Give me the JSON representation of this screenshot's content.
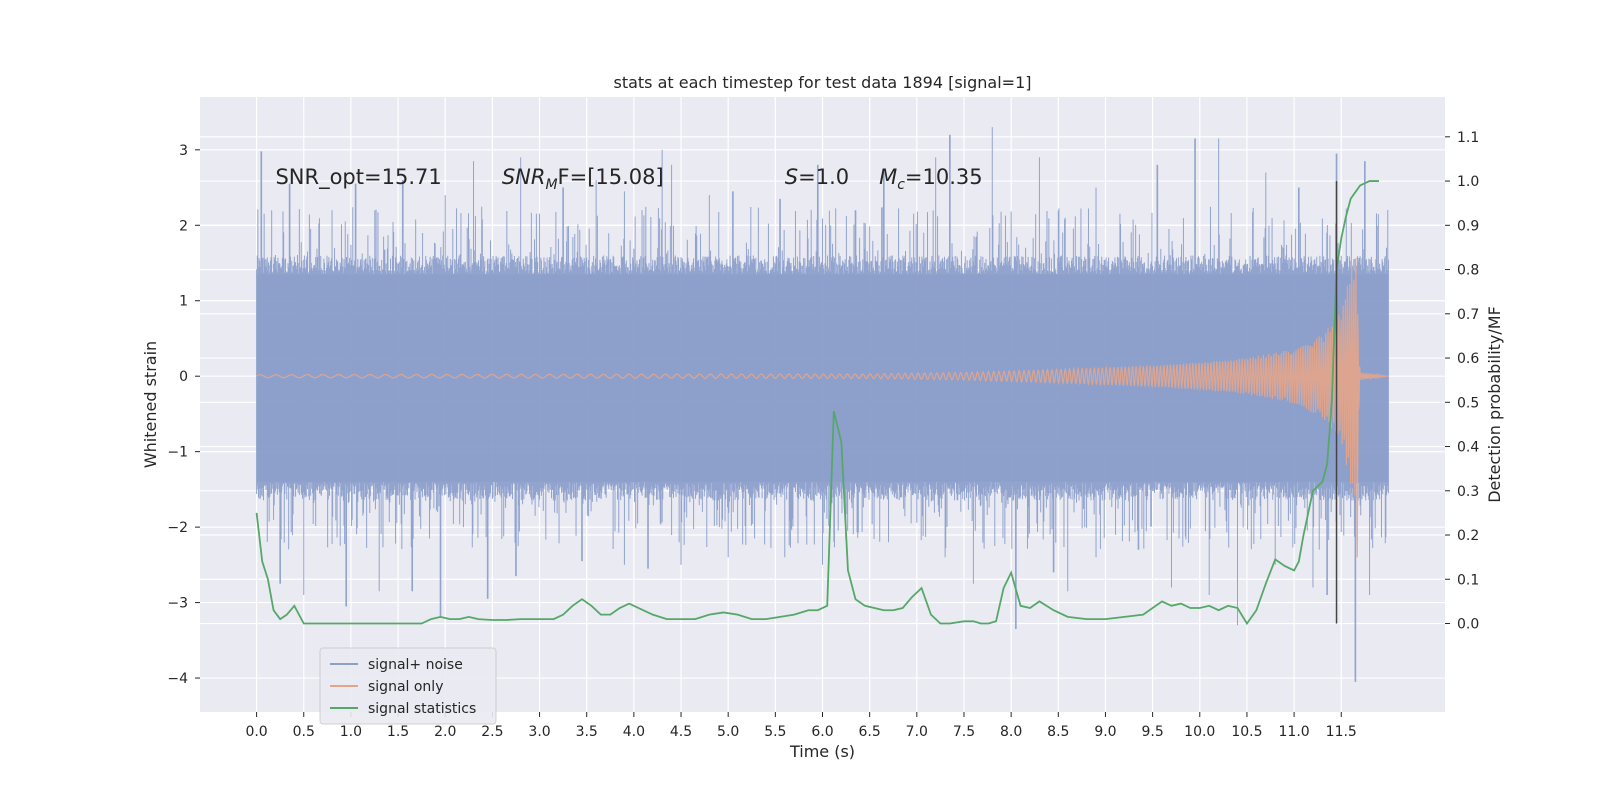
{
  "chart_data": {
    "type": "line",
    "title": "stats at each timestep for test data 1894 [signal=1]",
    "xlabel": "Time (s)",
    "ylabel": "Whitened strain",
    "y2label": "Detection probability/MF",
    "xlim": [
      -0.6,
      12.6
    ],
    "ylim": [
      -4.45,
      3.7
    ],
    "y2lim": [
      -0.2,
      1.19
    ],
    "xticks": [
      0.0,
      0.5,
      1.0,
      1.5,
      2.0,
      2.5,
      3.0,
      3.5,
      4.0,
      4.5,
      5.0,
      5.5,
      6.0,
      6.5,
      7.0,
      7.5,
      8.0,
      8.5,
      9.0,
      9.5,
      10.0,
      10.5,
      11.0,
      11.5
    ],
    "xtick_labels": [
      "0.0",
      "0.5",
      "1.0",
      "1.5",
      "2.0",
      "2.5",
      "3.0",
      "3.5",
      "4.0",
      "4.5",
      "5.0",
      "5.5",
      "6.0",
      "6.5",
      "7.0",
      "7.5",
      "8.0",
      "8.5",
      "9.0",
      "9.5",
      "10.0",
      "10.5",
      "11.0",
      "11.5"
    ],
    "yticks": [
      -4,
      -3,
      -2,
      -1,
      0,
      1,
      2,
      3
    ],
    "ytick_labels": [
      "−4",
      "−3",
      "−2",
      "−1",
      "0",
      "1",
      "2",
      "3"
    ],
    "y2ticks": [
      0.0,
      0.1,
      0.2,
      0.3,
      0.4,
      0.5,
      0.6,
      0.7,
      0.8,
      0.9,
      1.0,
      1.1
    ],
    "y2tick_labels": [
      "0.0",
      "0.1",
      "0.2",
      "0.3",
      "0.4",
      "0.5",
      "0.6",
      "0.7",
      "0.8",
      "0.9",
      "1.0",
      "1.1"
    ],
    "grid": true,
    "legend_position": "lower-left",
    "legend": [
      {
        "label": "signal+ noise",
        "color": "#8da0cb"
      },
      {
        "label": "signal only",
        "color": "#e5a589"
      },
      {
        "label": "signal statistics",
        "color": "#55a868"
      }
    ],
    "annotations": [
      {
        "prefix": "SNR_opt=15.71",
        "sub": "",
        "suffix": "",
        "x": 0.2,
        "y": 2.65
      },
      {
        "prefix": "SNR",
        "sub": "M",
        "suffix": "F=[15.08]",
        "italic_prefix": true,
        "x": 2.6,
        "y": 2.65
      },
      {
        "prefix": "S",
        "sub": "",
        "suffix": "=1.0",
        "italic_prefix": true,
        "x": 5.6,
        "y": 2.65
      },
      {
        "prefix": "M",
        "sub": "c",
        "suffix": "=10.35",
        "italic_prefix": true,
        "x": 6.6,
        "y": 2.65
      }
    ],
    "marker_line": {
      "x": 11.45,
      "y2_from": 0.0,
      "y2_to": 1.0,
      "color": "#444444"
    },
    "series": [
      {
        "name": "signal+ noise",
        "color": "#8da0cb",
        "style": "dense-noise",
        "x_range": [
          0.0,
          12.0
        ],
        "y_core": [
          -1.4,
          1.35
        ],
        "y_peaks": [
          [
            0.05,
            2.98
          ],
          [
            0.35,
            2.55
          ],
          [
            0.8,
            2.2
          ],
          [
            1.05,
            2.55
          ],
          [
            1.55,
            2.6
          ],
          [
            2.0,
            2.4
          ],
          [
            2.3,
            2.85
          ],
          [
            2.8,
            2.9
          ],
          [
            3.25,
            2.5
          ],
          [
            3.6,
            2.6
          ],
          [
            3.9,
            2.45
          ],
          [
            4.3,
            3.0
          ],
          [
            4.4,
            2.8
          ],
          [
            4.8,
            2.4
          ],
          [
            5.05,
            2.45
          ],
          [
            5.55,
            2.35
          ],
          [
            5.95,
            2.8
          ],
          [
            6.35,
            2.2
          ],
          [
            6.65,
            2.7
          ],
          [
            7.2,
            2.9
          ],
          [
            7.35,
            3.2
          ],
          [
            7.8,
            3.3
          ],
          [
            8.3,
            2.9
          ],
          [
            8.9,
            2.5
          ],
          [
            9.55,
            2.8
          ],
          [
            9.95,
            3.15
          ],
          [
            10.2,
            3.15
          ],
          [
            10.7,
            2.7
          ],
          [
            11.05,
            2.5
          ],
          [
            11.45,
            2.95
          ],
          [
            11.75,
            2.85
          ]
        ],
        "y_troughs": [
          [
            0.25,
            -2.75
          ],
          [
            0.5,
            -2.9
          ],
          [
            0.95,
            -3.05
          ],
          [
            1.3,
            -2.85
          ],
          [
            1.65,
            -2.85
          ],
          [
            1.95,
            -3.2
          ],
          [
            2.45,
            -2.95
          ],
          [
            2.75,
            -2.65
          ],
          [
            3.45,
            -2.45
          ],
          [
            3.9,
            -2.5
          ],
          [
            4.15,
            -2.55
          ],
          [
            4.5,
            -2.5
          ],
          [
            5.0,
            -2.4
          ],
          [
            5.6,
            -2.4
          ],
          [
            6.0,
            -2.5
          ],
          [
            6.7,
            -2.2
          ],
          [
            7.3,
            -2.4
          ],
          [
            7.6,
            -2.75
          ],
          [
            8.05,
            -3.35
          ],
          [
            8.45,
            -2.6
          ],
          [
            8.6,
            -2.85
          ],
          [
            8.9,
            -2.4
          ],
          [
            9.35,
            -2.3
          ],
          [
            9.7,
            -2.8
          ],
          [
            10.1,
            -2.9
          ],
          [
            10.4,
            -3.3
          ],
          [
            10.8,
            -2.5
          ],
          [
            11.2,
            -2.8
          ],
          [
            11.35,
            -2.9
          ],
          [
            11.65,
            -4.05
          ],
          [
            11.8,
            -2.9
          ]
        ]
      },
      {
        "name": "signal only",
        "color": "#e5a589",
        "style": "chirp",
        "x_range": [
          0.0,
          12.0
        ],
        "envelope": [
          [
            0.0,
            0.02
          ],
          [
            6.5,
            0.03
          ],
          [
            7.5,
            0.05
          ],
          [
            8.5,
            0.09
          ],
          [
            9.5,
            0.14
          ],
          [
            10.0,
            0.18
          ],
          [
            10.5,
            0.24
          ],
          [
            11.0,
            0.36
          ],
          [
            11.3,
            0.55
          ],
          [
            11.5,
            0.85
          ],
          [
            11.65,
            1.75
          ],
          [
            11.7,
            0.05
          ],
          [
            12.0,
            0.0
          ]
        ],
        "trough_at_merger": -2.4
      },
      {
        "name": "signal statistics",
        "color": "#55a868",
        "axis": "y2",
        "x": [
          0.0,
          0.06,
          0.12,
          0.18,
          0.25,
          0.32,
          0.4,
          0.5,
          0.62,
          0.75,
          0.9,
          1.05,
          1.2,
          1.35,
          1.5,
          1.62,
          1.75,
          1.85,
          1.95,
          2.05,
          2.15,
          2.25,
          2.35,
          2.5,
          2.65,
          2.8,
          2.95,
          3.05,
          3.15,
          3.25,
          3.35,
          3.45,
          3.55,
          3.65,
          3.75,
          3.85,
          3.95,
          4.05,
          4.2,
          4.35,
          4.5,
          4.65,
          4.8,
          4.95,
          5.1,
          5.25,
          5.4,
          5.55,
          5.7,
          5.85,
          5.95,
          6.05,
          6.12,
          6.2,
          6.27,
          6.35,
          6.45,
          6.55,
          6.65,
          6.75,
          6.85,
          6.95,
          7.05,
          7.15,
          7.25,
          7.35,
          7.5,
          7.6,
          7.68,
          7.76,
          7.84,
          7.92,
          8.0,
          8.1,
          8.2,
          8.3,
          8.45,
          8.6,
          8.8,
          9.0,
          9.2,
          9.4,
          9.6,
          9.7,
          9.8,
          9.9,
          10.0,
          10.1,
          10.2,
          10.3,
          10.4,
          10.5,
          10.6,
          10.7,
          10.8,
          10.9,
          11.0,
          11.05,
          11.1,
          11.15,
          11.2,
          11.25,
          11.3,
          11.35,
          11.4,
          11.45,
          11.5,
          11.55,
          11.6,
          11.7,
          11.8,
          11.9
        ],
        "y": [
          0.25,
          0.14,
          0.1,
          0.03,
          0.01,
          0.02,
          0.04,
          0.0,
          0.0,
          0.0,
          0.0,
          0.0,
          0.0,
          0.0,
          0.0,
          0.0,
          0.0,
          0.01,
          0.015,
          0.01,
          0.01,
          0.015,
          0.01,
          0.008,
          0.008,
          0.01,
          0.01,
          0.01,
          0.01,
          0.02,
          0.04,
          0.055,
          0.04,
          0.02,
          0.02,
          0.035,
          0.045,
          0.035,
          0.02,
          0.01,
          0.01,
          0.01,
          0.02,
          0.025,
          0.02,
          0.01,
          0.01,
          0.015,
          0.02,
          0.03,
          0.03,
          0.04,
          0.48,
          0.41,
          0.12,
          0.055,
          0.04,
          0.035,
          0.03,
          0.03,
          0.035,
          0.06,
          0.08,
          0.02,
          0.0,
          0.0,
          0.005,
          0.005,
          0.0,
          0.0,
          0.005,
          0.08,
          0.115,
          0.04,
          0.035,
          0.05,
          0.03,
          0.015,
          0.01,
          0.01,
          0.015,
          0.02,
          0.05,
          0.04,
          0.045,
          0.035,
          0.035,
          0.04,
          0.03,
          0.04,
          0.035,
          0.0,
          0.03,
          0.09,
          0.145,
          0.13,
          0.12,
          0.14,
          0.2,
          0.25,
          0.3,
          0.31,
          0.32,
          0.36,
          0.5,
          0.8,
          0.87,
          0.92,
          0.96,
          0.99,
          1.0,
          1.0
        ]
      }
    ]
  }
}
